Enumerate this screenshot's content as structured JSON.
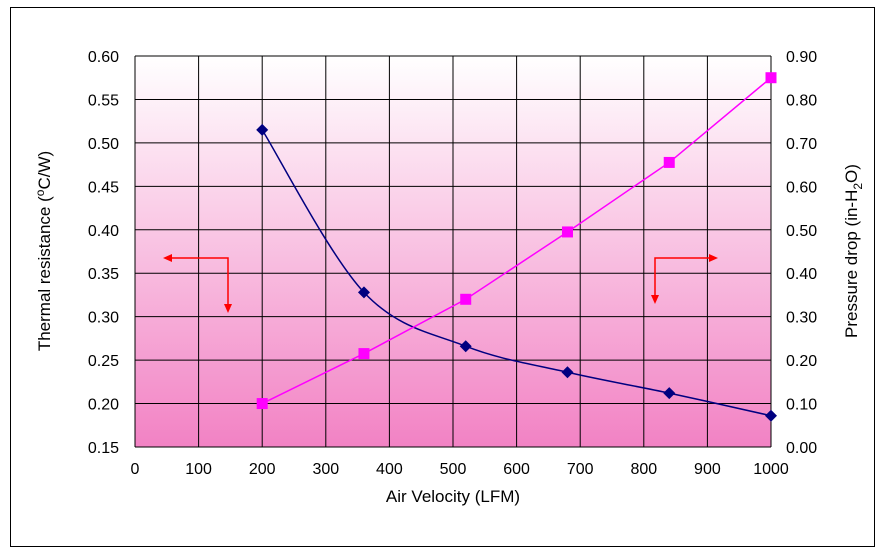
{
  "chart_data": {
    "type": "line",
    "title": "",
    "xlabel": "Air Velocity (LFM)",
    "ylabel_left": "Thermal resistance (°C/W)",
    "ylabel_right": "Pressure drop (in-H2O)",
    "xlim": [
      0,
      1000
    ],
    "ylim_left": [
      0.15,
      0.6
    ],
    "ylim_right": [
      0.0,
      0.9
    ],
    "x_ticks": [
      "0",
      "100",
      "200",
      "300",
      "400",
      "500",
      "600",
      "700",
      "800",
      "900",
      "1000"
    ],
    "y_left_ticks": [
      "0.60",
      "0.55",
      "0.50",
      "0.45",
      "0.40",
      "0.35",
      "0.30",
      "0.25",
      "0.20",
      "0.15"
    ],
    "y_right_ticks": [
      "0.90",
      "0.80",
      "0.70",
      "0.60",
      "0.50",
      "0.40",
      "0.30",
      "0.20",
      "0.10",
      "0.00"
    ],
    "grid": true,
    "legend": "none",
    "series": [
      {
        "axis": "left",
        "marker": "diamond",
        "color": "#000080",
        "x": [
          200,
          360,
          520,
          680,
          840,
          1000
        ],
        "y": [
          0.515,
          0.328,
          0.266,
          0.236,
          0.212,
          0.186
        ]
      },
      {
        "axis": "right",
        "marker": "square",
        "color": "#ff00ff",
        "x": [
          200,
          360,
          520,
          680,
          840,
          1000
        ],
        "y": [
          0.1,
          0.215,
          0.34,
          0.495,
          0.655,
          0.85
        ]
      }
    ],
    "annotations": [
      {
        "type": "arrow",
        "color": "#ff0000",
        "points_to": "left axis"
      },
      {
        "type": "arrow",
        "color": "#ff0000",
        "points_to": "right axis"
      }
    ]
  }
}
